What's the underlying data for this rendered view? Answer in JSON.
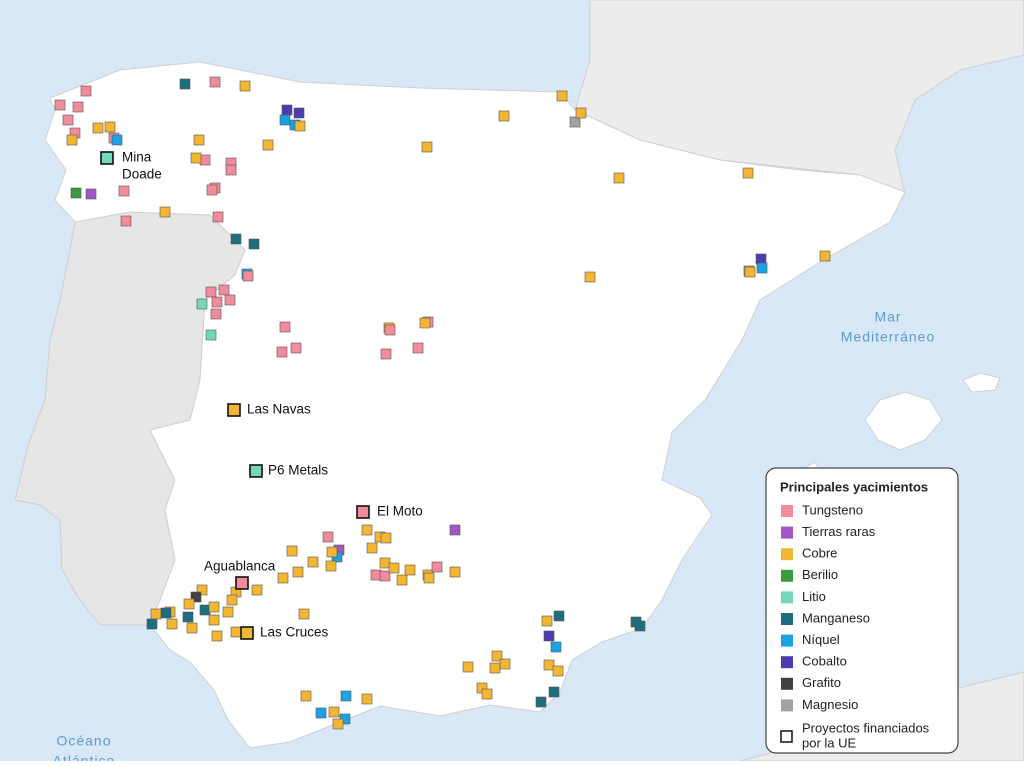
{
  "map": {
    "places": [
      {
        "lines": [
          "Mina",
          "Doade"
        ]
      },
      {
        "lines": [
          "Las Navas"
        ]
      },
      {
        "lines": [
          "P6 Metals"
        ]
      },
      {
        "lines": [
          "El Moto"
        ]
      },
      {
        "lines": [
          "Aguablanca"
        ]
      },
      {
        "lines": [
          "Las Cruces"
        ]
      }
    ],
    "seas": [
      {
        "lines": [
          "Mar",
          "Mediterráneo"
        ]
      },
      {
        "lines": [
          "Océano",
          "Atlántico"
        ]
      }
    ],
    "legend": {
      "title": "Principales yacimientos",
      "items": [
        {
          "label": "Tungsteno",
          "color": "#f28b9b"
        },
        {
          "label": "Tierras raras",
          "color": "#a455c6"
        },
        {
          "label": "Cobre",
          "color": "#f2b632"
        },
        {
          "label": "Berilio",
          "color": "#3b9c3b"
        },
        {
          "label": "Litio",
          "color": "#74d8bc"
        },
        {
          "label": "Manganeso",
          "color": "#1f6e7e"
        },
        {
          "label": "Níquel",
          "color": "#1aa2e2"
        },
        {
          "label": "Cobalto",
          "color": "#4c3cae"
        },
        {
          "label": "Grafito",
          "color": "#404040"
        },
        {
          "label": "Magnesio",
          "color": "#a2a2a2"
        }
      ],
      "project_label": [
        "Proyectos financiados",
        "por la UE"
      ]
    }
  }
}
